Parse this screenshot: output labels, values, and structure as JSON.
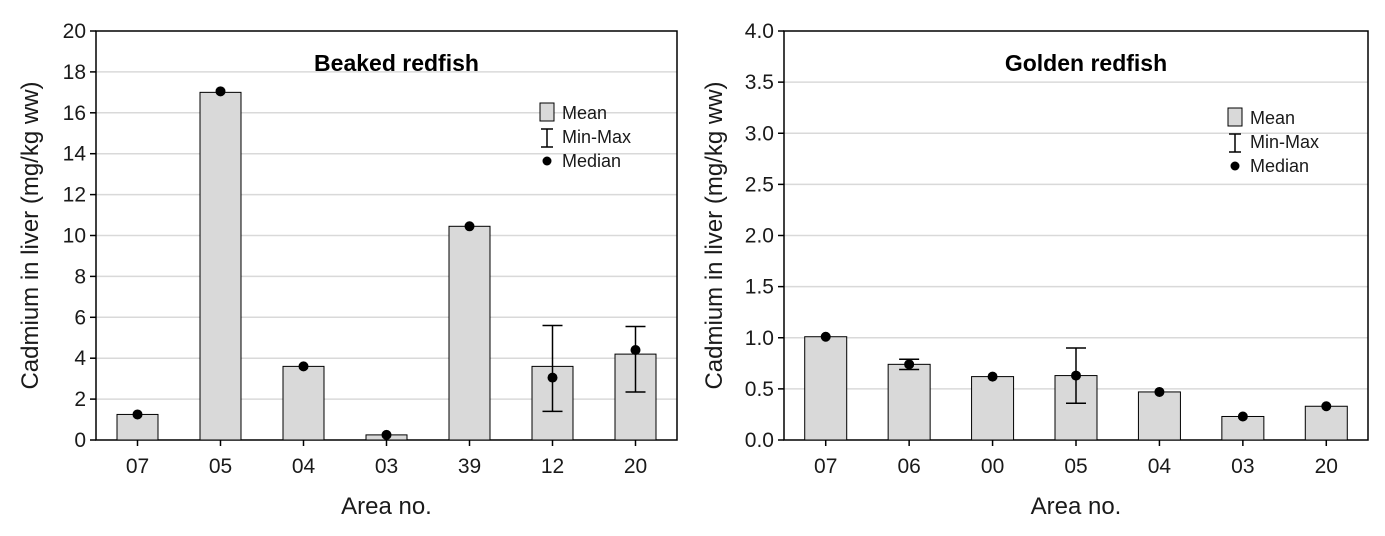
{
  "chart_data": [
    {
      "type": "bar",
      "title": "Beaked redfish",
      "xlabel": "Area no.",
      "ylabel": "Cadmium in liver (mg/kg ww)",
      "ylim": [
        0,
        20
      ],
      "yticks": [
        0,
        2,
        4,
        6,
        8,
        10,
        12,
        14,
        16,
        18,
        20
      ],
      "ytick_labels": [
        "0",
        "2",
        "4",
        "6",
        "8",
        "10",
        "12",
        "14",
        "16",
        "18",
        "20"
      ],
      "grid": true,
      "categories": [
        "07",
        "05",
        "04",
        "03",
        "39",
        "12",
        "20"
      ],
      "series": [
        {
          "name": "Mean",
          "values": [
            1.25,
            17.0,
            3.6,
            0.25,
            10.45,
            3.6,
            4.2
          ]
        },
        {
          "name": "Min-Max",
          "values": [
            null,
            null,
            null,
            null,
            null,
            [
              1.4,
              5.6
            ],
            [
              2.35,
              5.55
            ]
          ]
        },
        {
          "name": "Median",
          "values": [
            1.25,
            17.05,
            3.6,
            0.25,
            10.45,
            3.05,
            4.4
          ]
        }
      ],
      "legend": {
        "position": "top-right",
        "entries": [
          "Mean",
          "Min-Max",
          "Median"
        ]
      }
    },
    {
      "type": "bar",
      "title": "Golden redfish",
      "xlabel": "Area no.",
      "ylabel": "Cadmium in liver (mg/kg ww)",
      "ylim": [
        0,
        4
      ],
      "yticks": [
        0,
        0.5,
        1,
        1.5,
        2,
        2.5,
        3,
        3.5,
        4
      ],
      "ytick_labels": [
        "0.0",
        "0.5",
        "1.0",
        "1.5",
        "2.0",
        "2.5",
        "3.0",
        "3.5",
        "4.0"
      ],
      "grid": true,
      "categories": [
        "07",
        "06",
        "00",
        "05",
        "04",
        "03",
        "20"
      ],
      "series": [
        {
          "name": "Mean",
          "values": [
            1.01,
            0.74,
            0.62,
            0.63,
            0.47,
            0.23,
            0.33
          ]
        },
        {
          "name": "Min-Max",
          "values": [
            null,
            [
              0.69,
              0.79
            ],
            null,
            [
              0.36,
              0.9
            ],
            null,
            null,
            null
          ]
        },
        {
          "name": "Median",
          "values": [
            1.01,
            0.74,
            0.62,
            0.63,
            0.47,
            0.23,
            0.33
          ]
        }
      ],
      "legend": {
        "position": "top-right",
        "entries": [
          "Mean",
          "Min-Max",
          "Median"
        ]
      }
    }
  ],
  "colors": {
    "bar_fill": "#d9d9d9",
    "bar_stroke": "#000000",
    "grid": "#d9d9d9",
    "marker": "#000000"
  }
}
